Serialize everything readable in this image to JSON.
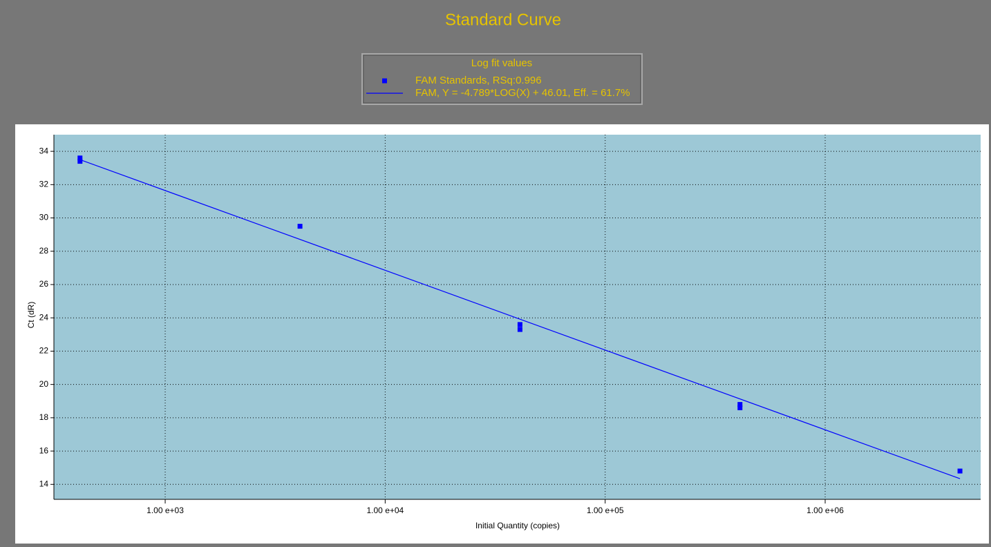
{
  "chart_data": {
    "type": "scatter",
    "title": "Standard Curve",
    "legend_title": "Log fit values",
    "x_label": "Initial Quantity (copies)",
    "y_label": "Ct (dR)",
    "xscale": "log",
    "xlim": [
      312,
      5090000
    ],
    "ylim": [
      13.1,
      35
    ],
    "xticks": [
      {
        "value": 1000,
        "label": "1.00 e+03"
      },
      {
        "value": 10000,
        "label": "1.00 e+04"
      },
      {
        "value": 100000,
        "label": "1.00 e+05"
      },
      {
        "value": 1000000,
        "label": "1.00 e+06"
      }
    ],
    "yticks": [
      14,
      16,
      18,
      20,
      22,
      24,
      26,
      28,
      30,
      32,
      34
    ],
    "grid": true,
    "series": [
      {
        "name": "FAM Standards, RSq:0.996",
        "type": "scatter",
        "color": "#0000ff",
        "x": [
          410,
          410,
          4100,
          41000,
          41000,
          410000,
          410000,
          4100000
        ],
        "values": [
          33.4,
          33.6,
          29.5,
          23.6,
          23.3,
          18.8,
          18.6,
          14.8
        ]
      },
      {
        "name": "FAM, Y = -4.789*LOG(X) + 46.01, Eff. = 61.7%",
        "type": "line",
        "color": "#0000ff",
        "x": [
          410,
          4100000
        ],
        "values": [
          33.5,
          14.34
        ]
      }
    ]
  }
}
